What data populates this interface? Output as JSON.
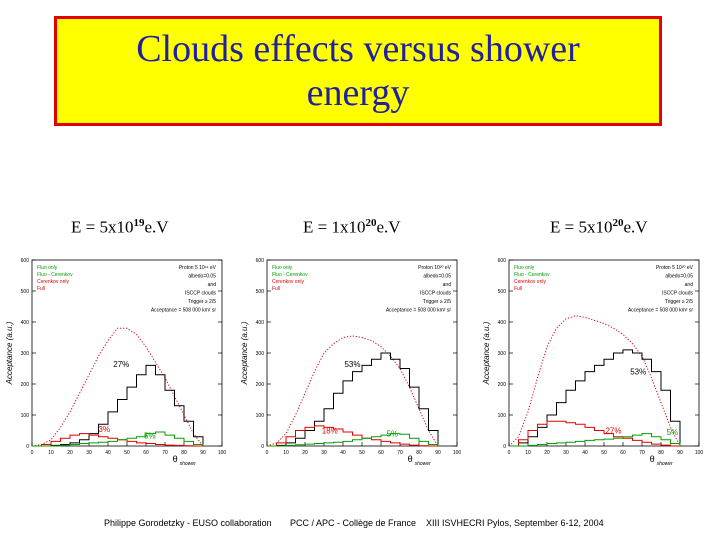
{
  "title": {
    "line1": "Clouds effects versus shower",
    "line2": "energy"
  },
  "colors": {
    "title_bg": "#ffff00",
    "title_border": "#e00000",
    "title_text": "#2020a0",
    "fluo": "#000000",
    "fluo_cerenkov": "#e00000",
    "cerenkov": "#00a000",
    "noise": "#000000"
  },
  "footer": {
    "left": "Philippe Gorodetzky - EUSO collaboration",
    "middle": "PCC / APC - Collège de France",
    "right": "XIII ISVHECRI Pylos, September 6-12, 2004"
  },
  "chart_data": [
    {
      "type": "line",
      "energy_label": {
        "base": "E = 5x10",
        "exp": "19",
        "unit": "e.V"
      },
      "ylabel": "Acceptance (a.u.)",
      "xlabel": "shower",
      "xlabel_symbol": "θ",
      "xlim": [
        0,
        100
      ],
      "ylim": [
        0,
        600
      ],
      "yticks": [
        "0",
        "100",
        "200",
        "300",
        "400",
        "500",
        "600"
      ],
      "xticks": [
        "0",
        "10",
        "20",
        "30",
        "40",
        "50",
        "60",
        "70",
        "80",
        "90",
        "100"
      ],
      "legend": [
        "Fluo only",
        "Fluo - Cerenkov",
        "Cerenkov only",
        "Full"
      ],
      "info": [
        "Proton 5 10¹⁹ eV",
        "albedo=0.05",
        "and",
        "ISCCP clouds",
        "Trigger ≥ 2/5",
        "Acceptance = 508 000 km² sr"
      ],
      "annotations": [
        {
          "text": "27%",
          "x": 47,
          "y": 255,
          "color": "#000000"
        },
        {
          "text": "3%",
          "x": 38,
          "y": 45,
          "color": "#e00000"
        },
        {
          "text": "5%",
          "x": 62,
          "y": 25,
          "color": "#00a000"
        }
      ],
      "series": [
        {
          "name": "Fluo + Cerenkov (no clouds)",
          "color": "#e00000",
          "style": "dotted",
          "x": [
            0,
            5,
            10,
            15,
            20,
            25,
            30,
            35,
            40,
            45,
            50,
            55,
            60,
            65,
            70,
            75,
            80,
            85,
            90
          ],
          "y": [
            0,
            5,
            20,
            60,
            110,
            170,
            230,
            290,
            340,
            380,
            380,
            360,
            320,
            270,
            220,
            160,
            100,
            40,
            0
          ]
        },
        {
          "name": "Fluo only",
          "color": "#000000",
          "style": "step",
          "x": [
            0,
            5,
            10,
            15,
            20,
            25,
            30,
            35,
            40,
            45,
            50,
            55,
            60,
            65,
            70,
            75,
            80,
            85,
            90
          ],
          "y": [
            0,
            0,
            2,
            5,
            10,
            20,
            40,
            70,
            110,
            150,
            190,
            230,
            260,
            230,
            180,
            130,
            80,
            30,
            0
          ]
        },
        {
          "name": "Cerenkov only",
          "color": "#e00000",
          "style": "step",
          "x": [
            0,
            5,
            10,
            15,
            20,
            25,
            30,
            35,
            40,
            45,
            50,
            55,
            60,
            65,
            70,
            75,
            80,
            85,
            90
          ],
          "y": [
            0,
            5,
            15,
            25,
            35,
            40,
            35,
            30,
            25,
            20,
            15,
            10,
            8,
            5,
            3,
            2,
            1,
            0,
            0
          ]
        },
        {
          "name": "Cerenkov (green)",
          "color": "#00a000",
          "style": "step",
          "x": [
            0,
            5,
            10,
            15,
            20,
            25,
            30,
            35,
            40,
            45,
            50,
            55,
            60,
            65,
            70,
            75,
            80,
            85,
            90
          ],
          "y": [
            0,
            0,
            0,
            2,
            5,
            8,
            10,
            12,
            15,
            20,
            25,
            30,
            40,
            45,
            35,
            25,
            15,
            5,
            0
          ]
        }
      ]
    },
    {
      "type": "line",
      "energy_label": {
        "base": "E = 1x10",
        "exp": "20",
        "unit": "e.V"
      },
      "ylabel": "Acceptance (a.u.)",
      "xlabel": "shower",
      "xlabel_symbol": "θ",
      "xlim": [
        0,
        100
      ],
      "ylim": [
        0,
        600
      ],
      "yticks": [
        "0",
        "100",
        "200",
        "300",
        "400",
        "500",
        "600"
      ],
      "xticks": [
        "0",
        "10",
        "20",
        "30",
        "40",
        "50",
        "60",
        "70",
        "80",
        "90",
        "100"
      ],
      "legend": [
        "Fluo only",
        "Fluo - Cerenkov",
        "Cerenkov only",
        "Full"
      ],
      "info": [
        "Proton 10²⁰ eV",
        "albedo=0.05",
        "and",
        "ISCCP clouds",
        "Trigger ≥ 2/5",
        "Acceptance = 508 000 km² sr"
      ],
      "annotations": [
        {
          "text": "53%",
          "x": 45,
          "y": 255,
          "color": "#000000"
        },
        {
          "text": "18%",
          "x": 33,
          "y": 40,
          "color": "#e00000"
        },
        {
          "text": "5%",
          "x": 66,
          "y": 30,
          "color": "#00a000"
        }
      ],
      "series": [
        {
          "name": "Fluo + Cerenkov (no clouds)",
          "color": "#e00000",
          "style": "dotted",
          "x": [
            0,
            5,
            10,
            15,
            20,
            25,
            30,
            35,
            40,
            45,
            50,
            55,
            60,
            65,
            70,
            75,
            80,
            85,
            90
          ],
          "y": [
            0,
            10,
            40,
            100,
            170,
            240,
            300,
            330,
            350,
            355,
            350,
            340,
            320,
            290,
            250,
            190,
            120,
            50,
            0
          ]
        },
        {
          "name": "Fluo only",
          "color": "#000000",
          "style": "step",
          "x": [
            0,
            5,
            10,
            15,
            20,
            25,
            30,
            35,
            40,
            45,
            50,
            55,
            60,
            65,
            70,
            75,
            80,
            85,
            90
          ],
          "y": [
            0,
            2,
            10,
            25,
            50,
            80,
            120,
            170,
            210,
            240,
            260,
            280,
            300,
            280,
            250,
            190,
            120,
            50,
            0
          ]
        },
        {
          "name": "Cerenkov only",
          "color": "#e00000",
          "style": "step",
          "x": [
            0,
            5,
            10,
            15,
            20,
            25,
            30,
            35,
            40,
            45,
            50,
            55,
            60,
            65,
            70,
            75,
            80,
            85,
            90
          ],
          "y": [
            0,
            10,
            30,
            50,
            60,
            65,
            60,
            55,
            45,
            35,
            25,
            20,
            15,
            10,
            6,
            3,
            1,
            0,
            0
          ]
        },
        {
          "name": "Cerenkov (green)",
          "color": "#00a000",
          "style": "step",
          "x": [
            0,
            5,
            10,
            15,
            20,
            25,
            30,
            35,
            40,
            45,
            50,
            55,
            60,
            65,
            70,
            75,
            80,
            85,
            90
          ],
          "y": [
            0,
            0,
            2,
            4,
            6,
            8,
            10,
            12,
            15,
            20,
            25,
            30,
            35,
            40,
            38,
            25,
            15,
            5,
            0
          ]
        }
      ]
    },
    {
      "type": "line",
      "energy_label": {
        "base": "E = 5x10",
        "exp": "20",
        "unit": "e.V"
      },
      "ylabel": "Acceptance (a.u.)",
      "xlabel": "shower",
      "xlabel_symbol": "θ",
      "xlim": [
        0,
        100
      ],
      "ylim": [
        0,
        600
      ],
      "yticks": [
        "0",
        "100",
        "200",
        "300",
        "400",
        "500",
        "600"
      ],
      "xticks": [
        "0",
        "10",
        "20",
        "30",
        "40",
        "50",
        "60",
        "70",
        "80",
        "90",
        "100"
      ],
      "legend": [
        "Fluo only",
        "Fluo - Cerenkov",
        "Cerenkov only",
        "Full"
      ],
      "info": [
        "Proton 5 10²⁰ eV",
        "albedo=0.05",
        "and",
        "ISCCP clouds",
        "Trigger ≥ 2/5",
        "Acceptance = 508 000 km² sr"
      ],
      "annotations": [
        {
          "text": "53%",
          "x": 68,
          "y": 230,
          "color": "#000000"
        },
        {
          "text": "27%",
          "x": 55,
          "y": 40,
          "color": "#e00000"
        },
        {
          "text": "5%",
          "x": 86,
          "y": 35,
          "color": "#00a000"
        }
      ],
      "series": [
        {
          "name": "Fluo + Cerenkov (no clouds)",
          "color": "#e00000",
          "style": "dotted",
          "x": [
            0,
            5,
            10,
            15,
            20,
            25,
            30,
            35,
            40,
            45,
            50,
            55,
            60,
            65,
            70,
            75,
            80,
            85,
            90
          ],
          "y": [
            0,
            30,
            110,
            220,
            320,
            380,
            410,
            420,
            415,
            405,
            395,
            380,
            360,
            330,
            290,
            220,
            140,
            60,
            0
          ]
        },
        {
          "name": "Fluo only",
          "color": "#000000",
          "style": "step",
          "x": [
            0,
            5,
            10,
            15,
            20,
            25,
            30,
            35,
            40,
            45,
            50,
            55,
            60,
            65,
            70,
            75,
            80,
            85,
            90
          ],
          "y": [
            0,
            10,
            30,
            60,
            100,
            140,
            180,
            210,
            240,
            260,
            280,
            300,
            310,
            300,
            280,
            240,
            180,
            80,
            0
          ]
        },
        {
          "name": "Cerenkov only",
          "color": "#e00000",
          "style": "step",
          "x": [
            0,
            5,
            10,
            15,
            20,
            25,
            30,
            35,
            40,
            45,
            50,
            55,
            60,
            65,
            70,
            75,
            80,
            85,
            90
          ],
          "y": [
            0,
            20,
            50,
            70,
            80,
            80,
            75,
            70,
            60,
            50,
            40,
            30,
            25,
            18,
            12,
            6,
            3,
            0,
            0
          ]
        },
        {
          "name": "Cerenkov (green)",
          "color": "#00a000",
          "style": "step",
          "x": [
            0,
            5,
            10,
            15,
            20,
            25,
            30,
            35,
            40,
            45,
            50,
            55,
            60,
            65,
            70,
            75,
            80,
            85,
            90
          ],
          "y": [
            0,
            0,
            2,
            5,
            8,
            10,
            12,
            15,
            18,
            20,
            22,
            25,
            30,
            35,
            40,
            30,
            20,
            8,
            0
          ]
        }
      ]
    }
  ]
}
